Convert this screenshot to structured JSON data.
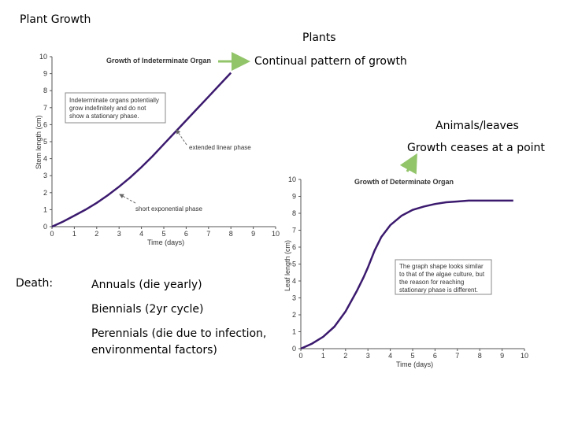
{
  "slide": {
    "title": "Plant Growth",
    "plants_label": "Plants",
    "plants_desc": "Continual pattern of growth",
    "animals_label": "Animals/leaves",
    "animals_desc": "Growth ceases at a point",
    "death_label": "Death:",
    "death_items": [
      "Annuals (die yearly)",
      "Biennials (2yr cycle)",
      "Perennials (die due to infection,",
      "environmental factors)"
    ],
    "arrow_color": "#92c46a"
  },
  "chart_data": [
    {
      "type": "line",
      "title": "Growth of Indeterminate Organ",
      "xlabel": "Time (days)",
      "ylabel": "Stem length (cm)",
      "xlim": [
        0,
        10
      ],
      "ylim": [
        0,
        10
      ],
      "xticks": [
        "0",
        "1",
        "2",
        "3",
        "4",
        "5",
        "6",
        "7",
        "8",
        "9",
        "10"
      ],
      "yticks": [
        "0",
        "1",
        "2",
        "3",
        "4",
        "5",
        "6",
        "7",
        "8",
        "9",
        "10"
      ],
      "series": [
        {
          "color": "#3b1a6e",
          "x": [
            0,
            0.5,
            1,
            1.5,
            2,
            2.5,
            3,
            3.5,
            4,
            4.5,
            5,
            5.5,
            6,
            6.5,
            7,
            7.5,
            8
          ],
          "y": [
            0,
            0.3,
            0.65,
            1.0,
            1.4,
            1.85,
            2.35,
            2.9,
            3.5,
            4.15,
            4.85,
            5.55,
            6.25,
            6.95,
            7.65,
            8.35,
            9.05
          ]
        }
      ],
      "note": "Indeterminate organs potentially grow indefinitely and do not show a stationary phase.",
      "annotations": [
        "extended linear phase",
        "short exponential phase"
      ]
    },
    {
      "type": "line",
      "title": "Growth of Determinate Organ",
      "xlabel": "Time (days)",
      "ylabel": "Leaf length (cm)",
      "xlim": [
        0,
        10
      ],
      "ylim": [
        0,
        10
      ],
      "xticks": [
        "0",
        "1",
        "2",
        "3",
        "4",
        "5",
        "6",
        "7",
        "8",
        "9",
        "10"
      ],
      "yticks": [
        "0",
        "1",
        "2",
        "3",
        "4",
        "5",
        "6",
        "7",
        "8",
        "9",
        "10"
      ],
      "series": [
        {
          "color": "#3b1a6e",
          "x": [
            0,
            0.5,
            1,
            1.5,
            2,
            2.5,
            2.8,
            3,
            3.3,
            3.6,
            4,
            4.5,
            5,
            5.5,
            6,
            6.5,
            7,
            7.5,
            8,
            8.5,
            9,
            9.5
          ],
          "y": [
            0,
            0.3,
            0.7,
            1.3,
            2.2,
            3.4,
            4.2,
            4.8,
            5.8,
            6.6,
            7.3,
            7.85,
            8.2,
            8.4,
            8.55,
            8.65,
            8.7,
            8.75,
            8.75,
            8.75,
            8.75,
            8.75
          ]
        }
      ],
      "note": "The graph shape looks similar to that of the algae culture, but the reason for reaching stationary phase is different."
    }
  ]
}
